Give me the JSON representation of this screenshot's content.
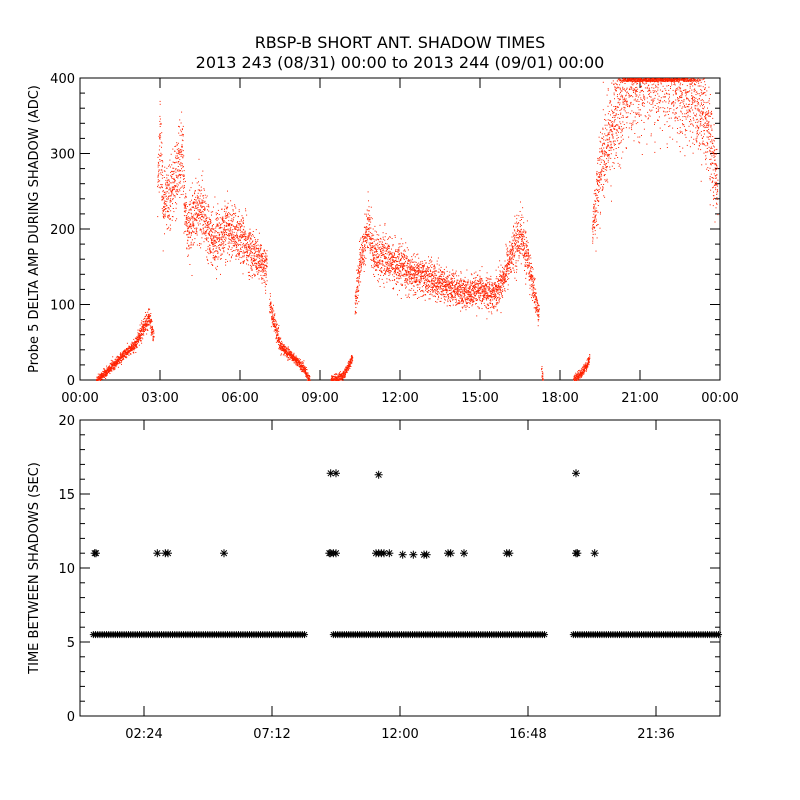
{
  "header": {
    "title": "RBSP-B SHORT ANT. SHADOW TIMES",
    "subtitle": "2013 243 (08/31) 00:00 to 2013 244 (09/01) 00:00"
  },
  "chart_data": [
    {
      "type": "scatter",
      "ylabel": "Probe 5 DELTA AMP DURING SHADOW (ADC)",
      "xlabel": "",
      "x_unit": "hours",
      "xlim": [
        0,
        24
      ],
      "ylim": [
        0,
        400
      ],
      "yticks": [
        0,
        100,
        200,
        300,
        400
      ],
      "xticks": [
        0,
        3,
        6,
        9,
        12,
        15,
        18,
        21,
        24
      ],
      "xtick_labels": [
        "00:00",
        "03:00",
        "06:00",
        "09:00",
        "12:00",
        "15:00",
        "18:00",
        "21:00",
        "00:00"
      ],
      "grid": false,
      "marker_color": "#ff2200",
      "series": [
        {
          "segments": [
            {
              "x": [
                0.6,
                1.0,
                1.5,
                2.0,
                2.4,
                2.6,
                2.75
              ],
              "y": [
                0,
                12,
                30,
                45,
                70,
                85,
                55
              ]
            },
            {
              "x": [
                2.9,
                3.0,
                3.1,
                3.5,
                3.8,
                4.0,
                4.5,
                5.0,
                5.5,
                6.0,
                6.5,
                7.0
              ],
              "y": [
                250,
                330,
                230,
                260,
                300,
                200,
                230,
                185,
                200,
                190,
                165,
                150
              ]
            },
            {
              "x": [
                7.1,
                7.5,
                8.0,
                8.4,
                8.6
              ],
              "y": [
                100,
                45,
                30,
                15,
                0
              ]
            },
            {
              "x": [
                9.4,
                9.8,
                10.0,
                10.2
              ],
              "y": [
                0,
                5,
                15,
                30
              ]
            },
            {
              "x": [
                10.3,
                10.5,
                10.8,
                11.0,
                11.5,
                12.0,
                12.5,
                13.0,
                13.5,
                14.0,
                14.5,
                15.0,
                15.5,
                15.8,
                16.2,
                16.5,
                16.8,
                17.0,
                17.2
              ],
              "y": [
                100,
                160,
                205,
                170,
                160,
                150,
                140,
                135,
                130,
                120,
                115,
                118,
                115,
                130,
                170,
                195,
                155,
                120,
                85
              ]
            },
            {
              "x": [
                17.3,
                17.35
              ],
              "y": [
                15,
                0
              ]
            },
            {
              "x": [
                18.5,
                18.8,
                19.0,
                19.1
              ],
              "y": [
                0,
                10,
                20,
                30
              ]
            },
            {
              "x": [
                19.2,
                19.5,
                20.0,
                20.5,
                21.0,
                21.5,
                22.0,
                22.5,
                23.0,
                23.5,
                23.9
              ],
              "y": [
                200,
                280,
                340,
                390,
                400,
                400,
                400,
                390,
                380,
                340,
                250
              ]
            }
          ]
        }
      ]
    },
    {
      "type": "scatter",
      "ylabel": "TIME BETWEEN SHADOWS (SEC)",
      "xlabel": "",
      "x_unit": "hours",
      "xlim": [
        0,
        24
      ],
      "ylim": [
        0,
        20
      ],
      "yticks": [
        0,
        5,
        10,
        15,
        20
      ],
      "xticks": [
        2.4,
        7.2,
        12,
        16.8,
        21.6
      ],
      "xtick_labels": [
        "02:24",
        "07:12",
        "12:00",
        "16:48",
        "21:36"
      ],
      "grid": false,
      "marker": "asterisk",
      "marker_color": "#000000",
      "series": [
        {
          "baseline_value": 5.5,
          "baseline_ranges": [
            [
              0.5,
              8.5
            ],
            [
              9.5,
              17.5
            ],
            [
              18.5,
              24
            ]
          ],
          "outliers": {
            "x": [
              0.55,
              0.6,
              2.9,
              3.2,
              3.3,
              5.4,
              9.35,
              9.5,
              9.4,
              9.6,
              11.1,
              11.2,
              11.3,
              11.4,
              11.6,
              12.1,
              12.5,
              12.9,
              13.0,
              13.8,
              13.9,
              14.4,
              16.0,
              16.1,
              18.6,
              18.65,
              19.3,
              9.4,
              9.6,
              11.2,
              18.6
            ],
            "y": [
              11,
              11,
              11,
              11,
              11,
              11,
              11,
              11,
              11,
              11,
              11,
              11,
              11,
              11,
              11,
              10.9,
              10.9,
              10.9,
              10.9,
              11,
              11,
              11,
              11,
              11,
              11,
              11,
              11,
              16.4,
              16.4,
              16.3,
              16.4
            ]
          }
        }
      ]
    }
  ]
}
